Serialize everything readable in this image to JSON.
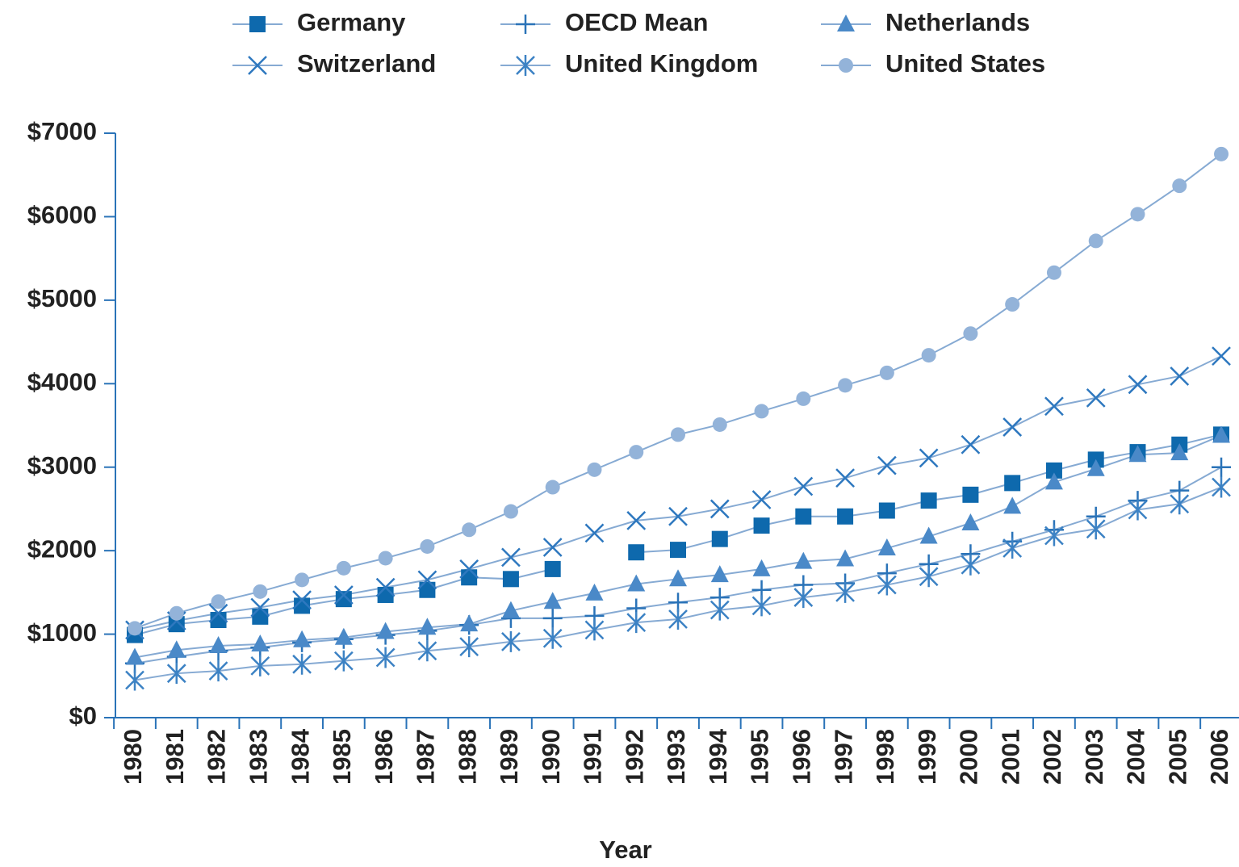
{
  "chart_data": {
    "type": "line",
    "x_label": "Year",
    "categories": [
      1980,
      1981,
      1982,
      1983,
      1984,
      1985,
      1986,
      1987,
      1988,
      1989,
      1990,
      1991,
      1992,
      1993,
      1994,
      1995,
      1996,
      1997,
      1998,
      1999,
      2000,
      2001,
      2002,
      2003,
      2004,
      2005,
      2006
    ],
    "ylim": [
      0,
      7000
    ],
    "yticks": [
      {
        "value": 0,
        "label": "$0"
      },
      {
        "value": 1000,
        "label": "$1000"
      },
      {
        "value": 2000,
        "label": "$2000"
      },
      {
        "value": 3000,
        "label": "$3000"
      },
      {
        "value": 4000,
        "label": "$4000"
      },
      {
        "value": 5000,
        "label": "$5000"
      },
      {
        "value": 6000,
        "label": "$6000"
      },
      {
        "value": 7000,
        "label": "$7000"
      }
    ],
    "legend": "top",
    "line_color": "#86aad3",
    "series": [
      {
        "name": "Germany",
        "marker": "square",
        "color": "#0e69ad",
        "values": [
          990,
          1120,
          1170,
          1210,
          1340,
          1420,
          1470,
          1530,
          1680,
          1660,
          1780,
          null,
          1980,
          2010,
          2140,
          2300,
          2410,
          2410,
          2480,
          2600,
          2670,
          2810,
          2960,
          3090,
          3180,
          3270,
          3390
        ]
      },
      {
        "name": "OECD Mean",
        "marker": "plus",
        "color": "#2a73b8",
        "values": [
          650,
          730,
          800,
          840,
          900,
          940,
          990,
          1040,
          1110,
          1190,
          1190,
          1220,
          1310,
          1380,
          1440,
          1530,
          1590,
          1610,
          1730,
          1840,
          1960,
          2110,
          2250,
          2410,
          2600,
          2720,
          3000
        ]
      },
      {
        "name": "Netherlands",
        "marker": "triangle",
        "color": "#4a89c8",
        "values": [
          720,
          810,
          860,
          880,
          930,
          960,
          1030,
          1080,
          1120,
          1280,
          1390,
          1490,
          1600,
          1660,
          1710,
          1780,
          1870,
          1900,
          2030,
          2170,
          2330,
          2530,
          2820,
          2980,
          3150,
          3170,
          3380
        ]
      },
      {
        "name": "Switzerland",
        "marker": "x",
        "color": "#2e78bf",
        "values": [
          1050,
          1160,
          1250,
          1320,
          1410,
          1470,
          1560,
          1650,
          1780,
          1920,
          2040,
          2210,
          2360,
          2410,
          2500,
          2610,
          2770,
          2870,
          3020,
          3110,
          3270,
          3480,
          3730,
          3830,
          3990,
          4090,
          4330
        ]
      },
      {
        "name": "United Kingdom",
        "marker": "asterisk",
        "color": "#3c82c4",
        "values": [
          450,
          530,
          560,
          620,
          640,
          680,
          720,
          800,
          850,
          910,
          950,
          1050,
          1140,
          1180,
          1290,
          1340,
          1440,
          1500,
          1590,
          1690,
          1830,
          2030,
          2180,
          2260,
          2490,
          2560,
          2760
        ]
      },
      {
        "name": "United States",
        "marker": "circle",
        "color": "#93b3d9",
        "values": [
          1070,
          1250,
          1390,
          1510,
          1650,
          1790,
          1910,
          2050,
          2250,
          2470,
          2760,
          2970,
          3180,
          3390,
          3510,
          3670,
          3820,
          3980,
          4130,
          4340,
          4600,
          4950,
          5330,
          5710,
          6030,
          6370,
          6750
        ]
      }
    ]
  }
}
